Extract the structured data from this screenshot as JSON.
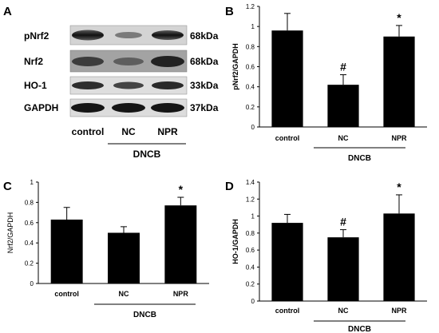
{
  "blot": {
    "panel_label": "A",
    "rows": [
      {
        "protein": "pNrf2",
        "size": "68kDa"
      },
      {
        "protein": "Nrf2",
        "size": "68kDa"
      },
      {
        "protein": "HO-1",
        "size": "33kDa"
      },
      {
        "protein": "GAPDH",
        "size": "37kDa"
      }
    ],
    "lanes": [
      "control",
      "NC",
      "NPR"
    ],
    "group_label": "DNCB"
  },
  "chart_data": [
    {
      "panel": "B",
      "type": "bar",
      "ylabel": "pNrf2/GAPDH",
      "xlabel": "",
      "categories": [
        "control",
        "NC",
        "NPR"
      ],
      "values": [
        0.96,
        0.42,
        0.9
      ],
      "errors": [
        0.17,
        0.1,
        0.11
      ],
      "marks": [
        "",
        "#",
        "*"
      ],
      "ylim": [
        0,
        1.2
      ],
      "yticks": [
        "0",
        "0.2",
        "0.4",
        "0.6",
        "0.8",
        "1",
        "1.2"
      ],
      "group_label": "DNCB"
    },
    {
      "panel": "C",
      "type": "bar",
      "ylabel": "Nrf2/GAPDH",
      "xlabel": "",
      "categories": [
        "control",
        "NC",
        "NPR"
      ],
      "values": [
        0.63,
        0.5,
        0.77
      ],
      "errors": [
        0.12,
        0.06,
        0.08
      ],
      "marks": [
        "",
        "",
        "*"
      ],
      "ylim": [
        0,
        1
      ],
      "yticks": [
        "0",
        "0.2",
        "0.4",
        "0.6",
        "0.8",
        "1"
      ],
      "group_label": "DNCB"
    },
    {
      "panel": "D",
      "type": "bar",
      "ylabel": "HO-1/GAPDH",
      "xlabel": "",
      "categories": [
        "control",
        "NC",
        "NPR"
      ],
      "values": [
        0.92,
        0.75,
        1.03
      ],
      "errors": [
        0.1,
        0.09,
        0.22
      ],
      "marks": [
        "",
        "#",
        "*"
      ],
      "ylim": [
        0,
        1.4
      ],
      "yticks": [
        "0",
        "0.2",
        "0.4",
        "0.6",
        "0.8",
        "1",
        "1.2",
        "1.4"
      ],
      "group_label": "DNCB"
    }
  ]
}
